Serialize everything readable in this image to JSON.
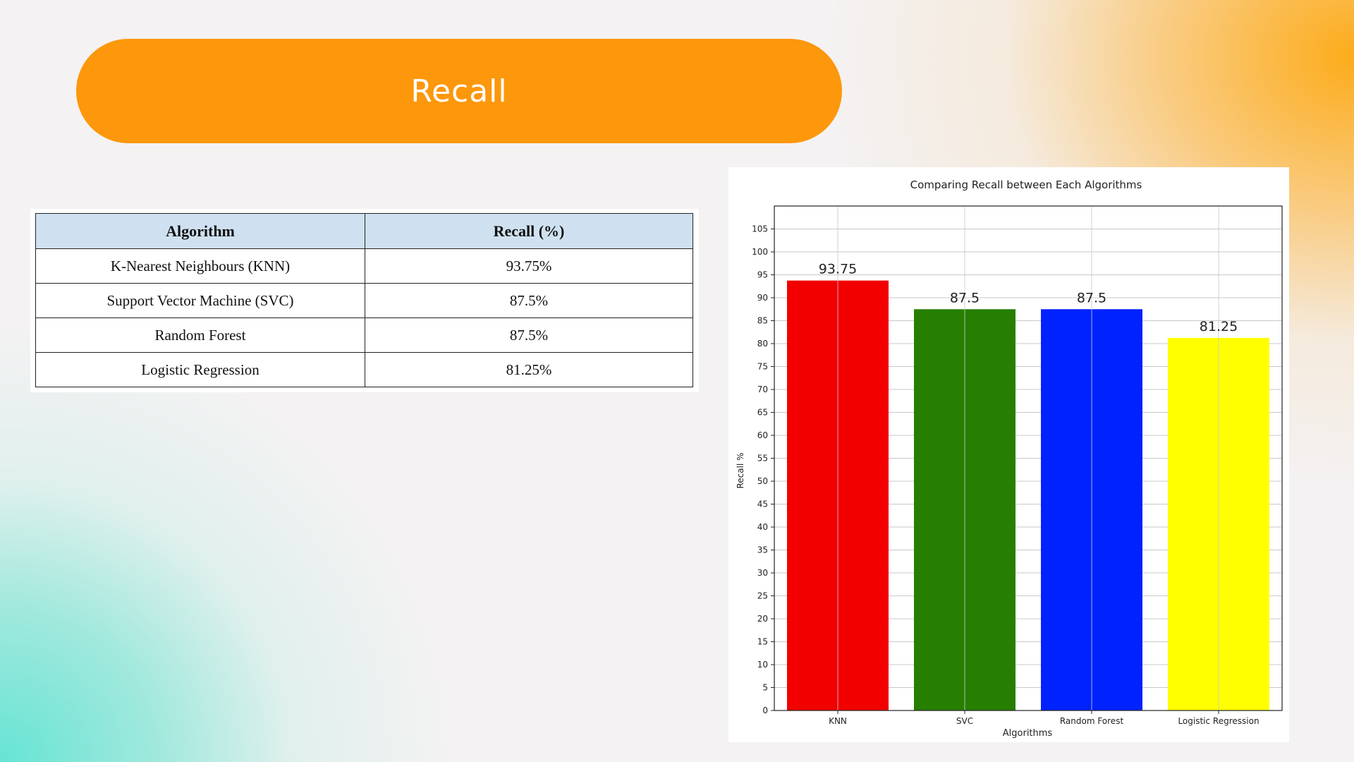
{
  "slide": {
    "title": "Recall",
    "colors": {
      "pill": "#fd970b",
      "background": "#f4f2f3",
      "table_header": "#cfe1f1"
    }
  },
  "table": {
    "headers": [
      "Algorithm",
      "Recall (%)"
    ],
    "rows": [
      {
        "algorithm": "K-Nearest Neighbours (KNN)",
        "recall": "93.75%"
      },
      {
        "algorithm": "Support Vector Machine (SVC)",
        "recall": "87.5%"
      },
      {
        "algorithm": "Random Forest",
        "recall": "87.5%"
      },
      {
        "algorithm": "Logistic Regression",
        "recall": "81.25%"
      }
    ]
  },
  "chart_data": {
    "type": "bar",
    "title": "Comparing Recall between Each Algorithms",
    "xlabel": "Algorithms",
    "ylabel": "Recall %",
    "categories": [
      "KNN",
      "SVC",
      "Random Forest",
      "Logistic Regression"
    ],
    "values": [
      93.75,
      87.5,
      87.5,
      81.25
    ],
    "data_labels": [
      "93.75",
      "87.5",
      "87.5",
      "81.25"
    ],
    "colors": [
      "#f20000",
      "#267f00",
      "#0022ff",
      "#ffff00"
    ],
    "ylim": [
      0,
      110
    ],
    "yticks": [
      0,
      5,
      10,
      15,
      20,
      25,
      30,
      35,
      40,
      45,
      50,
      55,
      60,
      65,
      70,
      75,
      80,
      85,
      90,
      95,
      100,
      105
    ],
    "grid": true,
    "legend": "none"
  }
}
